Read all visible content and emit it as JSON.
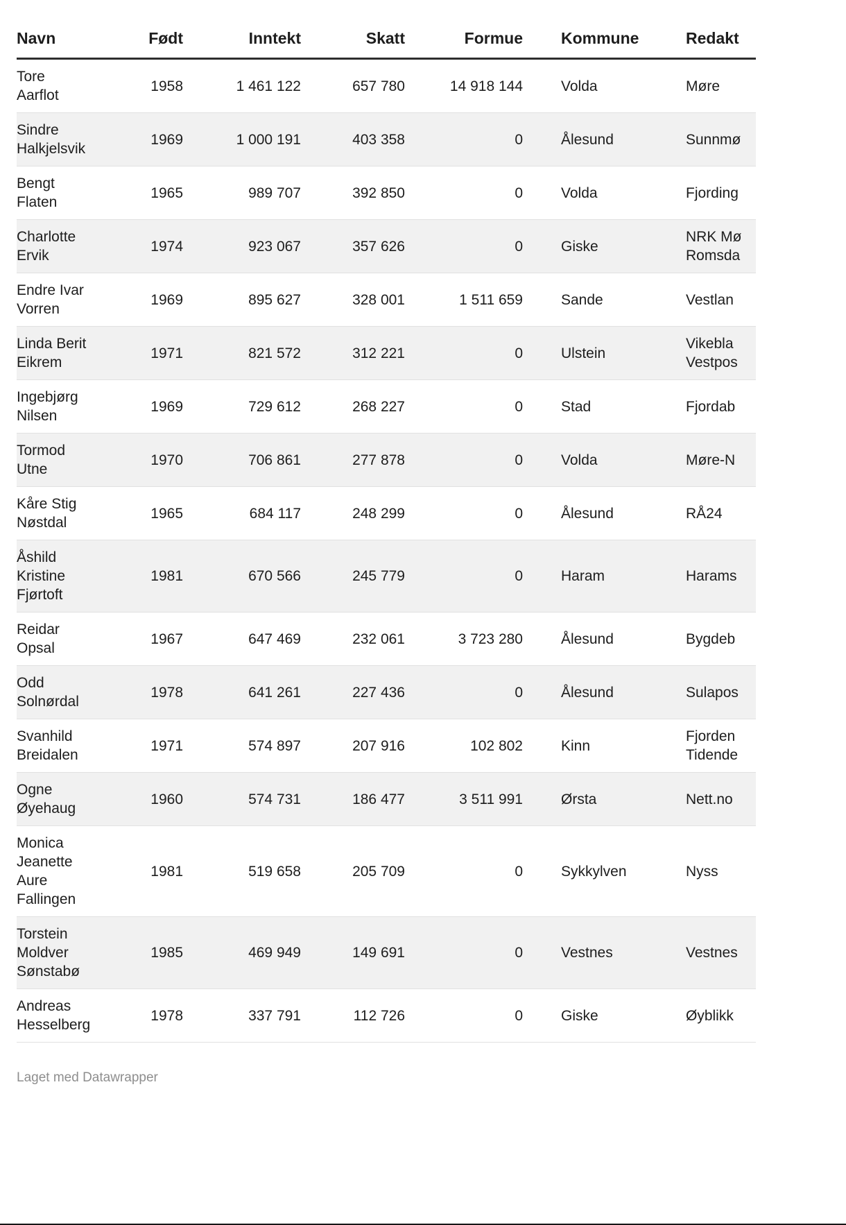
{
  "page": {
    "attribution": "Laget med Datawrapper"
  },
  "theme": {
    "background": "#ffffff",
    "text": "#1d1d1d",
    "header_rule": "#2e2e2e",
    "stripe": "#f1f1f1",
    "row_divider": "#e1e1e1",
    "attribution_color": "#8e8e8e",
    "edge_line": "#161616"
  },
  "chart_data": {
    "type": "table",
    "columns": [
      "Navn",
      "Født",
      "Inntekt",
      "Skatt",
      "Formue",
      "Kommune",
      "Redakt"
    ],
    "column_keys": [
      "navn",
      "fodt",
      "inntekt",
      "skatt",
      "formue",
      "kommune",
      "redaksjon"
    ],
    "column_align": [
      "left",
      "right",
      "right",
      "right",
      "right",
      "left",
      "left"
    ],
    "rows": [
      [
        "Tore\nAarflot",
        "1958",
        "1 461 122",
        "657 780",
        "14 918 144",
        "Volda",
        "Møre"
      ],
      [
        "Sindre\nHalkjelsvik",
        "1969",
        "1 000 191",
        "403 358",
        "0",
        "Ålesund",
        "Sunnmø"
      ],
      [
        "Bengt\nFlaten",
        "1965",
        "989 707",
        "392 850",
        "0",
        "Volda",
        "Fjording"
      ],
      [
        "Charlotte\nErvik",
        "1974",
        "923 067",
        "357 626",
        "0",
        "Giske",
        "NRK Mø\nRomsda"
      ],
      [
        "Endre Ivar\nVorren",
        "1969",
        "895 627",
        "328 001",
        "1 511 659",
        "Sande",
        "Vestlan"
      ],
      [
        "Linda Berit\nEikrem",
        "1971",
        "821 572",
        "312 221",
        "0",
        "Ulstein",
        "Vikebla\nVestpos"
      ],
      [
        "Ingebjørg\nNilsen",
        "1969",
        "729 612",
        "268 227",
        "0",
        "Stad",
        "Fjordab"
      ],
      [
        "Tormod\nUtne",
        "1970",
        "706 861",
        "277 878",
        "0",
        "Volda",
        "Møre-N"
      ],
      [
        "Kåre Stig\nNøstdal",
        "1965",
        "684 117",
        "248 299",
        "0",
        "Ålesund",
        "RÅ24"
      ],
      [
        "Åshild\nKristine\nFjørtoft",
        "1981",
        "670 566",
        "245 779",
        "0",
        "Haram",
        "Harams"
      ],
      [
        "Reidar\nOpsal",
        "1967",
        "647 469",
        "232 061",
        "3 723 280",
        "Ålesund",
        "Bygdeb"
      ],
      [
        "Odd\nSolnørdal",
        "1978",
        "641 261",
        "227 436",
        "0",
        "Ålesund",
        "Sulapos"
      ],
      [
        "Svanhild\nBreidalen",
        "1971",
        "574 897",
        "207 916",
        "102 802",
        "Kinn",
        "Fjorden\nTidende"
      ],
      [
        "Ogne\nØyehaug",
        "1960",
        "574 731",
        "186 477",
        "3 511 991",
        "Ørsta",
        "Nett.no"
      ],
      [
        "Monica\nJeanette\nAure\nFallingen",
        "1981",
        "519 658",
        "205 709",
        "0",
        "Sykkylven",
        "Nyss"
      ],
      [
        "Torstein\nMoldver\nSønstabø",
        "1985",
        "469 949",
        "149 691",
        "0",
        "Vestnes",
        "Vestnes"
      ],
      [
        "Andreas\nHesselberg",
        "1978",
        "337 791",
        "112 726",
        "0",
        "Giske",
        "Øyblikk"
      ]
    ]
  }
}
